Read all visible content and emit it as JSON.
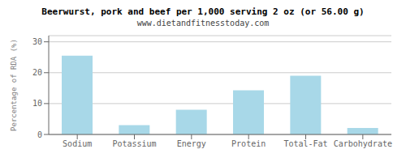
{
  "chart_data": {
    "type": "bar",
    "title": "Beerwurst, pork and beef per 1,000 serving 2 oz (or 56.00 g)",
    "subtitle": "www.dietandfitnesstoday.com",
    "categories": [
      "Sodium",
      "Potassium",
      "Energy",
      "Protein",
      "Total-Fat",
      "Carbohydrate"
    ],
    "values": [
      25.5,
      3.0,
      8.0,
      14.3,
      19.0,
      2.1
    ],
    "color": "#a8d8e8",
    "ylabel": "Percentage of RDA (%)",
    "ylim": [
      0,
      32
    ],
    "yticks": [
      0,
      10,
      20,
      30
    ],
    "grid": true
  }
}
